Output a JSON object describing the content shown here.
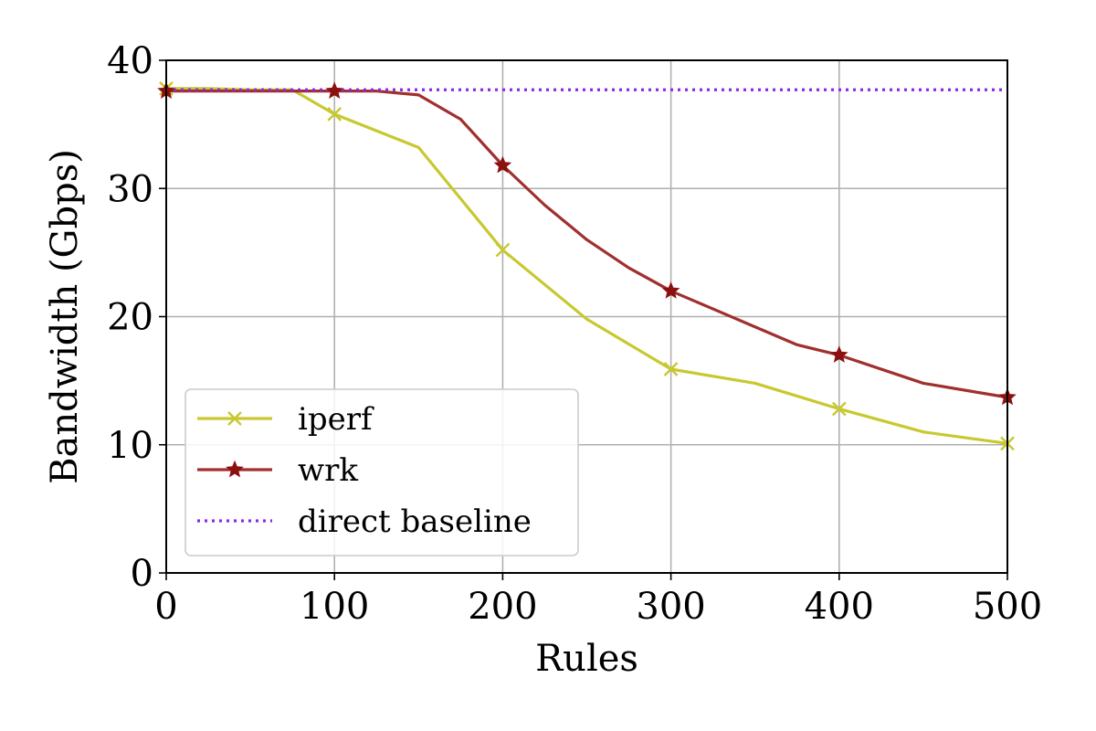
{
  "chart_data": {
    "type": "line",
    "title": "",
    "xlabel": "Rules",
    "ylabel": "Bandwidth (Gbps)",
    "xlim": [
      0,
      500
    ],
    "ylim": [
      0,
      40
    ],
    "xticks": [
      0,
      100,
      200,
      300,
      400,
      500
    ],
    "yticks": [
      0,
      10,
      20,
      30,
      40
    ],
    "grid": true,
    "legend_position": "lower-left",
    "series": [
      {
        "name": "iperf",
        "color": "#c8c830",
        "marker": "x",
        "line_style": "solid",
        "x": [
          0,
          25,
          50,
          75,
          100,
          150,
          175,
          200,
          250,
          300,
          350,
          400,
          450,
          500
        ],
        "y": [
          37.8,
          37.8,
          37.7,
          37.7,
          35.8,
          33.2,
          29.2,
          25.2,
          19.8,
          15.9,
          14.8,
          12.8,
          11.0,
          10.1
        ],
        "marker_x": [
          0,
          100,
          200,
          300,
          400,
          500
        ]
      },
      {
        "name": "wrk",
        "color": "#a0302e",
        "marker": "star",
        "line_style": "solid",
        "x": [
          0,
          25,
          50,
          75,
          100,
          125,
          150,
          175,
          200,
          225,
          250,
          275,
          300,
          325,
          350,
          375,
          400,
          450,
          500
        ],
        "y": [
          37.6,
          37.6,
          37.6,
          37.6,
          37.6,
          37.6,
          37.3,
          35.4,
          31.8,
          28.7,
          26.0,
          23.8,
          22.0,
          20.6,
          19.2,
          17.8,
          17.0,
          14.8,
          13.7
        ],
        "marker_x": [
          0,
          100,
          200,
          300,
          400,
          500
        ]
      },
      {
        "name": "direct baseline",
        "color": "#8a2be2",
        "marker": "none",
        "line_style": "dotted",
        "x": [
          0,
          500
        ],
        "y": [
          37.7,
          37.7
        ]
      }
    ]
  }
}
